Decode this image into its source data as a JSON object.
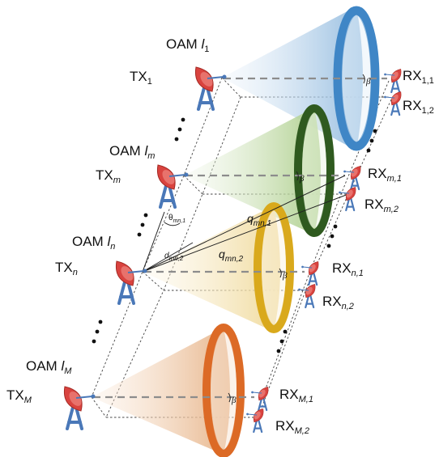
{
  "beams": [
    {
      "oam_main": "OAM ",
      "oam_sym": "l",
      "oam_sub": "1",
      "tx_main": "TX",
      "tx_sub": "1",
      "rx1_main": "RX",
      "rx1_sub": "1,1",
      "rx2_main": "RX",
      "rx2_sub": "1,2",
      "ring_color": "#3f86c6",
      "cone_color": "#9dc3e0"
    },
    {
      "oam_main": "OAM ",
      "oam_sym": "l",
      "oam_sub": "m",
      "tx_main": "TX",
      "tx_sub": "m",
      "rx1_main": "RX",
      "rx1_sub": "m,1",
      "rx2_main": "RX",
      "rx2_sub": "m,2",
      "ring_color": "#2f5a1f",
      "cone_color": "#b7d49a"
    },
    {
      "oam_main": "OAM ",
      "oam_sym": "l",
      "oam_sub": "n",
      "tx_main": "TX",
      "tx_sub": "n",
      "rx1_main": "RX",
      "rx1_sub": "n,1",
      "rx2_main": "RX",
      "rx2_sub": "n,2",
      "ring_color": "#d9a91c",
      "cone_color": "#f3dfa6"
    },
    {
      "oam_main": "OAM ",
      "oam_sym": "l",
      "oam_sub": "M",
      "tx_main": "TX",
      "tx_sub": "M",
      "rx1_main": "RX",
      "rx1_sub": "M,1",
      "rx2_main": "RX",
      "rx2_sub": "M,2",
      "ring_color": "#dc6a26",
      "cone_color": "#f0c49a"
    }
  ],
  "annotations": {
    "theta": "θ",
    "theta_sub": "mn,1",
    "d": "d",
    "d_sub": "mn,2",
    "q1": "q",
    "q1_sub": "mn,1",
    "q2": "q",
    "q2_sub": "mn,2",
    "beta": "β"
  },
  "colors": {
    "antenna": "#d9433f",
    "stand": "#4a78b8",
    "beam_axis": "#8c8c8c"
  }
}
